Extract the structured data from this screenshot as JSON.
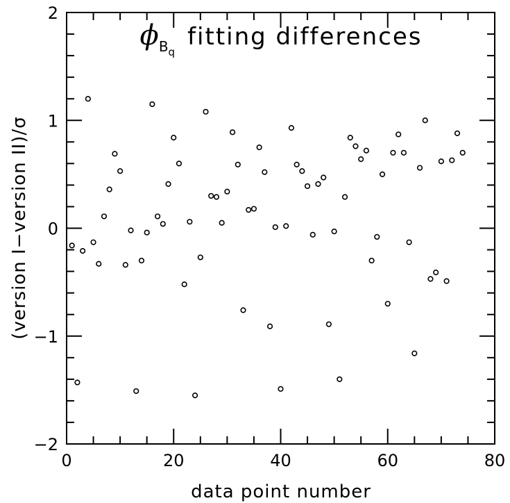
{
  "chart_data": {
    "type": "scatter",
    "title": {
      "symbol": "ϕ",
      "subscript": "B",
      "subsubscript": "q",
      "text": "fitting differences"
    },
    "xlabel": "data point number",
    "ylabel": "(version I−version II)/σ",
    "xlim": [
      0,
      80
    ],
    "ylim": [
      -2,
      2
    ],
    "x_ticks": [
      0,
      20,
      40,
      60,
      80
    ],
    "y_ticks": [
      -2,
      -1,
      0,
      1,
      2
    ],
    "x_tick_labels": [
      "0",
      "20",
      "40",
      "60",
      "80"
    ],
    "y_tick_labels": [
      "−2",
      "−1",
      "0",
      "1",
      "2"
    ],
    "x_minor_step": 5,
    "y_minor_step": 0.2,
    "marker": "open-circle",
    "grid": false,
    "x": [
      1,
      2,
      3,
      4,
      5,
      6,
      7,
      8,
      9,
      10,
      11,
      12,
      13,
      14,
      15,
      16,
      17,
      18,
      19,
      20,
      21,
      22,
      23,
      24,
      25,
      26,
      27,
      28,
      29,
      30,
      31,
      32,
      33,
      34,
      35,
      36,
      37,
      38,
      39,
      40,
      41,
      42,
      43,
      44,
      45,
      46,
      47,
      48,
      49,
      50,
      51,
      52,
      53,
      54,
      55,
      56,
      57,
      58,
      59,
      60,
      61,
      62,
      63,
      64,
      65,
      66,
      67,
      68,
      69,
      70,
      71,
      72,
      73,
      74
    ],
    "y": [
      -0.16,
      -1.43,
      -0.21,
      1.2,
      -0.13,
      -0.33,
      0.11,
      0.36,
      0.69,
      0.53,
      -0.34,
      -0.02,
      -1.51,
      -0.3,
      -0.04,
      1.15,
      0.11,
      0.04,
      0.41,
      0.84,
      0.6,
      -0.52,
      0.06,
      -1.55,
      -0.27,
      1.08,
      0.3,
      0.29,
      0.05,
      0.34,
      0.89,
      0.59,
      -0.76,
      0.17,
      0.18,
      0.75,
      0.52,
      -0.91,
      0.01,
      -1.49,
      0.02,
      0.93,
      0.59,
      0.53,
      0.39,
      -0.06,
      0.41,
      0.47,
      -0.89,
      -0.03,
      -1.4,
      0.29,
      0.84,
      0.76,
      0.64,
      0.72,
      -0.3,
      -0.08,
      0.5,
      -0.7,
      0.7,
      0.87,
      0.7,
      -0.13,
      -1.16,
      0.56,
      1.0,
      -0.47,
      -0.41,
      0.62,
      -0.49,
      0.63,
      0.88,
      0.7
    ]
  }
}
